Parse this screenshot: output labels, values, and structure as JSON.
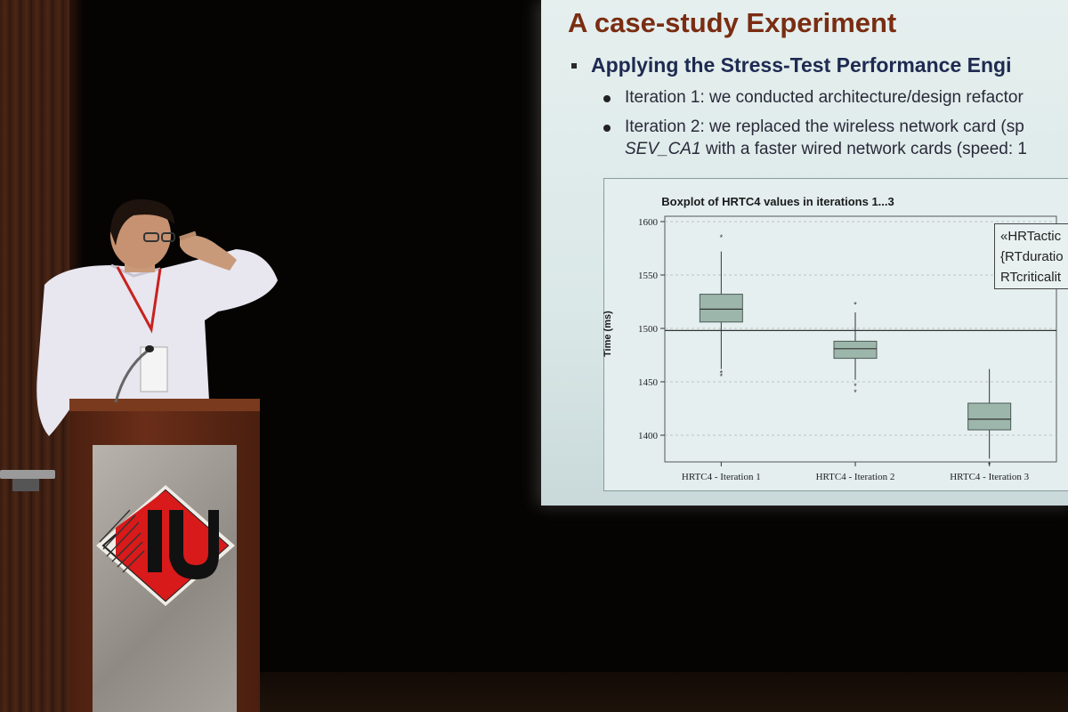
{
  "slide": {
    "title": "A case-study Experiment",
    "bullet": "Applying the Stress-Test Performance Engi",
    "sub1": "Iteration 1: we conducted architecture/design refactor",
    "sub2_line1": "Iteration 2: we replaced the wireless network card (sp",
    "sub2_line2_italic": "SEV_CA1",
    "sub2_line2_rest": " with a faster wired network cards (speed: 1"
  },
  "chart_data": {
    "type": "boxplot",
    "title": "Boxplot of HRTC4 values in iterations 1...3",
    "ylabel": "Time (ms)",
    "yticks": [
      1400,
      1450,
      1500,
      1550,
      1600
    ],
    "ylim": [
      1375,
      1605
    ],
    "reference_line": 1498,
    "categories": [
      "HRTC4 - Iteration 1",
      "HRTC4 - Iteration 2",
      "HRTC4 - Iteration 3"
    ],
    "boxes": [
      {
        "whisker_low": 1462,
        "q1": 1506,
        "median": 1518,
        "q3": 1532,
        "whisker_high": 1572,
        "outliers": [
          1585,
          1455,
          1458
        ]
      },
      {
        "whisker_low": 1452,
        "q1": 1472,
        "median": 1481,
        "q3": 1488,
        "whisker_high": 1515,
        "outliers": [
          1522,
          1446,
          1440
        ]
      },
      {
        "whisker_low": 1378,
        "q1": 1405,
        "median": 1415,
        "q3": 1430,
        "whisker_high": 1462,
        "outliers": [
          1372
        ]
      }
    ]
  },
  "legend": {
    "line1": "«HRTactic",
    "line2": "{RTduratio",
    "line3": "RTcriticalit"
  },
  "colors": {
    "title": "#7a2d12",
    "bullet": "#1e2a50",
    "box_fill": "#9db6ab"
  }
}
